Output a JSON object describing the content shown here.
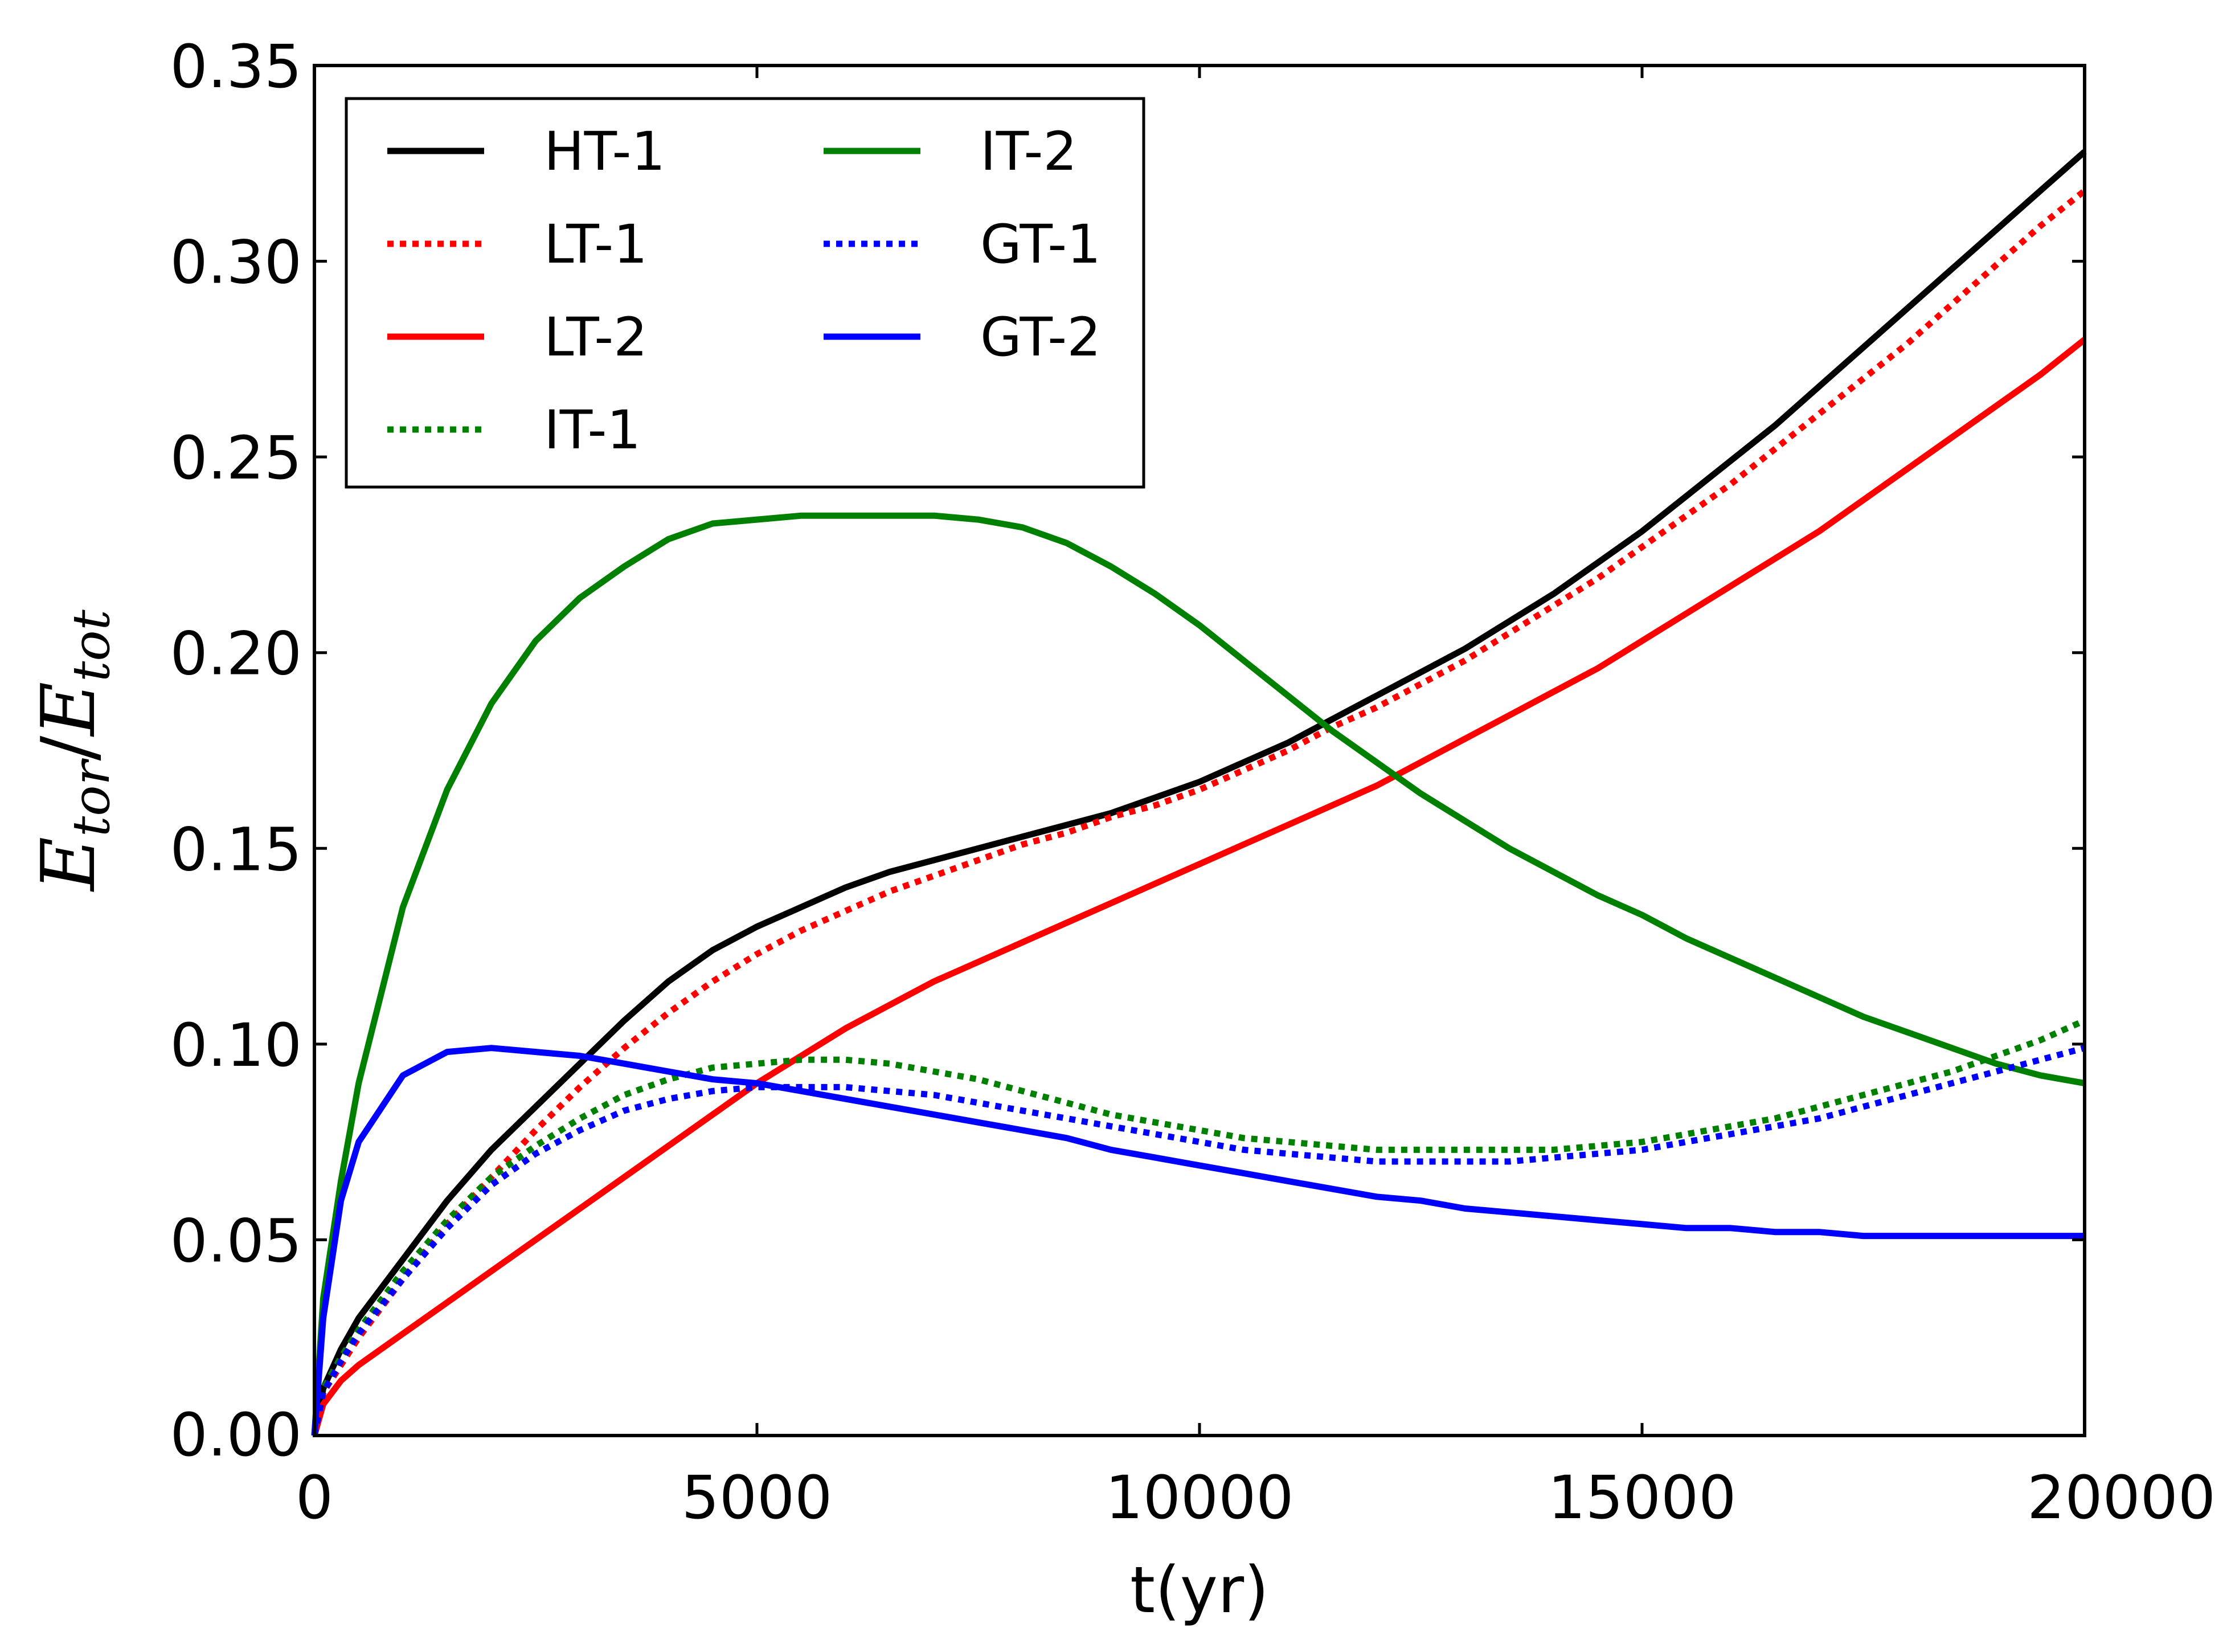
{
  "chart_data": {
    "type": "line",
    "title": "",
    "xlabel": "t(yr)",
    "ylabel": {
      "base": "E",
      "num_sub": "tor",
      "slash": "/",
      "den_base": "E",
      "den_sub": "tot"
    },
    "xlim": [
      0,
      20000
    ],
    "ylim": [
      0.0,
      0.35
    ],
    "x_ticks": [
      "0",
      "5000",
      "10000",
      "15000",
      "20000"
    ],
    "y_ticks": [
      "0.00",
      "0.05",
      "0.10",
      "0.15",
      "0.20",
      "0.25",
      "0.30",
      "0.35"
    ],
    "legend_position": "top-left",
    "series": [
      {
        "name": "HT-1",
        "color": "#000000",
        "style": "solid",
        "x": [
          0,
          100,
          300,
          500,
          1000,
          1500,
          2000,
          2500,
          3000,
          3500,
          4000,
          4500,
          5000,
          5500,
          6000,
          6500,
          7000,
          7500,
          8000,
          8500,
          9000,
          9500,
          10000,
          10500,
          11000,
          11500,
          12000,
          12500,
          13000,
          13500,
          14000,
          14500,
          15000,
          15500,
          16000,
          16500,
          17000,
          17500,
          18000,
          18500,
          19000,
          19500,
          20000
        ],
        "y": [
          0.0,
          0.012,
          0.022,
          0.03,
          0.045,
          0.06,
          0.073,
          0.084,
          0.095,
          0.106,
          0.116,
          0.124,
          0.13,
          0.135,
          0.14,
          0.144,
          0.147,
          0.15,
          0.153,
          0.156,
          0.159,
          0.163,
          0.167,
          0.172,
          0.177,
          0.183,
          0.189,
          0.195,
          0.201,
          0.208,
          0.215,
          0.223,
          0.231,
          0.24,
          0.249,
          0.258,
          0.268,
          0.278,
          0.288,
          0.298,
          0.308,
          0.318,
          0.328
        ]
      },
      {
        "name": "LT-1",
        "color": "#ff0000",
        "style": "dotted",
        "x": [
          0,
          100,
          300,
          500,
          1000,
          1500,
          2000,
          2500,
          3000,
          3500,
          4000,
          4500,
          5000,
          5500,
          6000,
          6500,
          7000,
          7500,
          8000,
          8500,
          9000,
          9500,
          10000,
          10500,
          11000,
          11500,
          12000,
          12500,
          13000,
          13500,
          14000,
          14500,
          15000,
          15500,
          16000,
          16500,
          17000,
          17500,
          18000,
          18500,
          19000,
          19500,
          20000
        ],
        "y": [
          0.0,
          0.011,
          0.018,
          0.025,
          0.04,
          0.054,
          0.066,
          0.078,
          0.089,
          0.099,
          0.108,
          0.116,
          0.123,
          0.129,
          0.134,
          0.139,
          0.143,
          0.147,
          0.151,
          0.154,
          0.158,
          0.161,
          0.165,
          0.17,
          0.175,
          0.181,
          0.186,
          0.192,
          0.198,
          0.205,
          0.212,
          0.219,
          0.227,
          0.235,
          0.243,
          0.252,
          0.261,
          0.27,
          0.279,
          0.289,
          0.299,
          0.309,
          0.318
        ]
      },
      {
        "name": "LT-2",
        "color": "#ff0000",
        "style": "solid",
        "x": [
          0,
          100,
          300,
          500,
          1000,
          1500,
          2000,
          2500,
          3000,
          3500,
          4000,
          4500,
          5000,
          5500,
          6000,
          6500,
          7000,
          7500,
          8000,
          8500,
          9000,
          9500,
          10000,
          10500,
          11000,
          11500,
          12000,
          12500,
          13000,
          13500,
          14000,
          14500,
          15000,
          15500,
          16000,
          16500,
          17000,
          17500,
          18000,
          18500,
          19000,
          19500,
          20000
        ],
        "y": [
          0.0,
          0.008,
          0.014,
          0.018,
          0.026,
          0.034,
          0.042,
          0.05,
          0.058,
          0.066,
          0.074,
          0.082,
          0.09,
          0.097,
          0.104,
          0.11,
          0.116,
          0.121,
          0.126,
          0.131,
          0.136,
          0.141,
          0.146,
          0.151,
          0.156,
          0.161,
          0.166,
          0.172,
          0.178,
          0.184,
          0.19,
          0.196,
          0.203,
          0.21,
          0.217,
          0.224,
          0.231,
          0.239,
          0.247,
          0.255,
          0.263,
          0.271,
          0.28
        ]
      },
      {
        "name": "IT-1",
        "color": "#008000",
        "style": "dotted",
        "x": [
          0,
          100,
          300,
          500,
          1000,
          1500,
          2000,
          2500,
          3000,
          3500,
          4000,
          4500,
          5000,
          5500,
          6000,
          6500,
          7000,
          7500,
          8000,
          8500,
          9000,
          9500,
          10000,
          10500,
          11000,
          11500,
          12000,
          12500,
          13000,
          13500,
          14000,
          14500,
          15000,
          15500,
          16000,
          16500,
          17000,
          17500,
          18000,
          18500,
          19000,
          19500,
          20000
        ],
        "y": [
          0.0,
          0.012,
          0.02,
          0.027,
          0.042,
          0.055,
          0.066,
          0.074,
          0.081,
          0.087,
          0.091,
          0.094,
          0.095,
          0.096,
          0.096,
          0.095,
          0.093,
          0.091,
          0.088,
          0.085,
          0.082,
          0.08,
          0.078,
          0.076,
          0.075,
          0.074,
          0.073,
          0.073,
          0.073,
          0.073,
          0.073,
          0.074,
          0.075,
          0.077,
          0.079,
          0.081,
          0.084,
          0.087,
          0.09,
          0.093,
          0.097,
          0.101,
          0.106
        ]
      },
      {
        "name": "IT-2",
        "color": "#008000",
        "style": "solid",
        "x": [
          0,
          100,
          300,
          500,
          1000,
          1500,
          2000,
          2500,
          3000,
          3500,
          4000,
          4500,
          5000,
          5500,
          6000,
          6500,
          7000,
          7500,
          8000,
          8500,
          9000,
          9500,
          10000,
          10500,
          11000,
          11500,
          12000,
          12500,
          13000,
          13500,
          14000,
          14500,
          15000,
          15500,
          16000,
          16500,
          17000,
          17500,
          18000,
          18500,
          19000,
          19500,
          20000
        ],
        "y": [
          0.0,
          0.035,
          0.065,
          0.09,
          0.135,
          0.165,
          0.187,
          0.203,
          0.214,
          0.222,
          0.229,
          0.233,
          0.234,
          0.235,
          0.235,
          0.235,
          0.235,
          0.234,
          0.232,
          0.228,
          0.222,
          0.215,
          0.207,
          0.198,
          0.189,
          0.18,
          0.172,
          0.164,
          0.157,
          0.15,
          0.144,
          0.138,
          0.133,
          0.127,
          0.122,
          0.117,
          0.112,
          0.107,
          0.103,
          0.099,
          0.095,
          0.092,
          0.09
        ]
      },
      {
        "name": "GT-1",
        "color": "#0000ff",
        "style": "dotted",
        "x": [
          0,
          100,
          300,
          500,
          1000,
          1500,
          2000,
          2500,
          3000,
          3500,
          4000,
          4500,
          5000,
          5500,
          6000,
          6500,
          7000,
          7500,
          8000,
          8500,
          9000,
          9500,
          10000,
          10500,
          11000,
          11500,
          12000,
          12500,
          13000,
          13500,
          14000,
          14500,
          15000,
          15500,
          16000,
          16500,
          17000,
          17500,
          18000,
          18500,
          19000,
          19500,
          20000
        ],
        "y": [
          0.0,
          0.011,
          0.019,
          0.026,
          0.04,
          0.053,
          0.064,
          0.072,
          0.078,
          0.083,
          0.086,
          0.088,
          0.089,
          0.089,
          0.089,
          0.088,
          0.087,
          0.085,
          0.083,
          0.081,
          0.079,
          0.077,
          0.075,
          0.073,
          0.072,
          0.071,
          0.07,
          0.07,
          0.07,
          0.07,
          0.071,
          0.072,
          0.073,
          0.075,
          0.077,
          0.079,
          0.081,
          0.084,
          0.087,
          0.09,
          0.093,
          0.096,
          0.099
        ]
      },
      {
        "name": "GT-2",
        "color": "#0000ff",
        "style": "solid",
        "x": [
          0,
          100,
          300,
          500,
          1000,
          1500,
          2000,
          2500,
          3000,
          3500,
          4000,
          4500,
          5000,
          5500,
          6000,
          6500,
          7000,
          7500,
          8000,
          8500,
          9000,
          9500,
          10000,
          10500,
          11000,
          11500,
          12000,
          12500,
          13000,
          13500,
          14000,
          14500,
          15000,
          15500,
          16000,
          16500,
          17000,
          17500,
          18000,
          18500,
          19000,
          19500,
          20000
        ],
        "y": [
          0.0,
          0.03,
          0.06,
          0.075,
          0.092,
          0.098,
          0.099,
          0.098,
          0.097,
          0.095,
          0.093,
          0.091,
          0.09,
          0.088,
          0.086,
          0.084,
          0.082,
          0.08,
          0.078,
          0.076,
          0.073,
          0.071,
          0.069,
          0.067,
          0.065,
          0.063,
          0.061,
          0.06,
          0.058,
          0.057,
          0.056,
          0.055,
          0.054,
          0.053,
          0.053,
          0.052,
          0.052,
          0.051,
          0.051,
          0.051,
          0.051,
          0.051,
          0.051
        ]
      }
    ],
    "legend_order": [
      "HT-1",
      "LT-1",
      "LT-2",
      "IT-1",
      "IT-2",
      "GT-1",
      "GT-2"
    ]
  }
}
